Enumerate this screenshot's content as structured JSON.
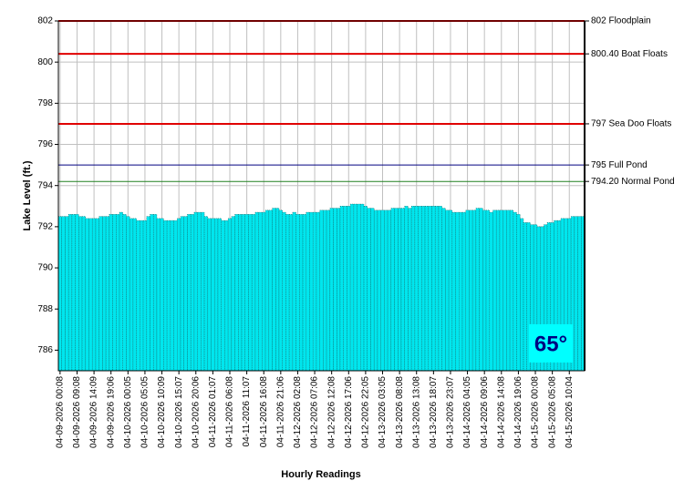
{
  "chart_data": {
    "type": "bar",
    "x_label": "Hourly Readings",
    "y_label": "Lake Level (ft.)",
    "annotation": "65°",
    "color": "#00e6ee",
    "ylim": [
      785,
      802
    ],
    "yticks": [
      786,
      788,
      790,
      792,
      794,
      796,
      798,
      800,
      802
    ],
    "grid": true,
    "reference_lines": [
      {
        "value": 802,
        "label": "802 Floodplain",
        "color": "#e00000"
      },
      {
        "value": 800.4,
        "label": "800.40 Boat Floats",
        "color": "#e00000"
      },
      {
        "value": 797,
        "label": "797 Sea Doo Floats",
        "color": "#e00000"
      },
      {
        "value": 795,
        "label": "795 Full Pond",
        "color": "#000080"
      },
      {
        "value": 794.2,
        "label": "794.20 Normal Pond",
        "color": "#208020"
      }
    ],
    "categories": [
      "04-09-2026 00:08",
      null,
      null,
      null,
      null,
      "04-09-2026 09:08",
      null,
      null,
      null,
      null,
      "04-09-2026 14:09",
      null,
      null,
      null,
      null,
      "04-09-2026 19:06",
      null,
      null,
      null,
      null,
      "04-10-2026 00:05",
      null,
      null,
      null,
      null,
      "04-10-2026 05:05",
      null,
      null,
      null,
      null,
      "04-10-2026 10:09",
      null,
      null,
      null,
      null,
      "04-10-2026 15:07",
      null,
      null,
      null,
      null,
      "04-10-2026 20:06",
      null,
      null,
      null,
      null,
      "04-11-2026 01:07",
      null,
      null,
      null,
      null,
      "04-11-2026 06:08",
      null,
      null,
      null,
      null,
      "04-11-2026 11:07",
      null,
      null,
      null,
      null,
      "04-11-2026 16:08",
      null,
      null,
      null,
      null,
      "04-11-2026 21:06",
      null,
      null,
      null,
      null,
      "04-12-2026 02:08",
      null,
      null,
      null,
      null,
      "04-12-2026 07:06",
      null,
      null,
      null,
      null,
      "04-12-2026 12:08",
      null,
      null,
      null,
      null,
      "04-12-2026 17:06",
      null,
      null,
      null,
      null,
      "04-12-2026 22:05",
      null,
      null,
      null,
      null,
      "04-13-2026 03:05",
      null,
      null,
      null,
      null,
      "04-13-2026 08:08",
      null,
      null,
      null,
      null,
      "04-13-2026 13:08",
      null,
      null,
      null,
      null,
      "04-13-2026 18:07",
      null,
      null,
      null,
      null,
      "04-13-2026 23:07",
      null,
      null,
      null,
      null,
      "04-14-2026 04:05",
      null,
      null,
      null,
      null,
      "04-14-2026 09:06",
      null,
      null,
      null,
      null,
      "04-14-2026 14:08",
      null,
      null,
      null,
      null,
      "04-14-2026 19:06",
      null,
      null,
      null,
      null,
      "04-15-2026 00:08",
      null,
      null,
      null,
      null,
      "04-15-2026 05:08",
      null,
      null,
      null,
      null,
      "04-15-2026 10:04",
      null,
      null,
      null,
      null
    ],
    "values": [
      792.5,
      792.5,
      792.5,
      792.6,
      792.6,
      792.6,
      792.5,
      792.5,
      792.4,
      792.4,
      792.4,
      792.4,
      792.5,
      792.5,
      792.5,
      792.6,
      792.6,
      792.6,
      792.7,
      792.6,
      792.5,
      792.4,
      792.4,
      792.3,
      792.3,
      792.3,
      792.5,
      792.6,
      792.6,
      792.4,
      792.4,
      792.3,
      792.3,
      792.3,
      792.3,
      792.4,
      792.5,
      792.5,
      792.6,
      792.6,
      792.7,
      792.7,
      792.7,
      792.5,
      792.4,
      792.4,
      792.4,
      792.4,
      792.3,
      792.3,
      792.4,
      792.5,
      792.6,
      792.6,
      792.6,
      792.6,
      792.6,
      792.6,
      792.7,
      792.7,
      792.7,
      792.8,
      792.8,
      792.9,
      792.9,
      792.8,
      792.7,
      792.6,
      792.6,
      792.7,
      792.6,
      792.6,
      792.6,
      792.7,
      792.7,
      792.7,
      792.7,
      792.8,
      792.8,
      792.8,
      792.9,
      792.9,
      792.9,
      793.0,
      793.0,
      793.0,
      793.1,
      793.1,
      793.1,
      793.1,
      793.0,
      792.9,
      792.9,
      792.8,
      792.8,
      792.8,
      792.8,
      792.8,
      792.9,
      792.9,
      792.9,
      792.9,
      793.0,
      792.9,
      793.0,
      793.0,
      793.0,
      793.0,
      793.0,
      793.0,
      793.0,
      793.0,
      793.0,
      792.9,
      792.8,
      792.8,
      792.7,
      792.7,
      792.7,
      792.7,
      792.8,
      792.8,
      792.8,
      792.9,
      792.9,
      792.8,
      792.8,
      792.7,
      792.8,
      792.8,
      792.8,
      792.8,
      792.8,
      792.8,
      792.7,
      792.6,
      792.4,
      792.2,
      792.2,
      792.1,
      792.1,
      792.0,
      792.0,
      792.1,
      792.2,
      792.2,
      792.3,
      792.3,
      792.4,
      792.4,
      792.4,
      792.5,
      792.5,
      792.5,
      792.5
    ]
  }
}
